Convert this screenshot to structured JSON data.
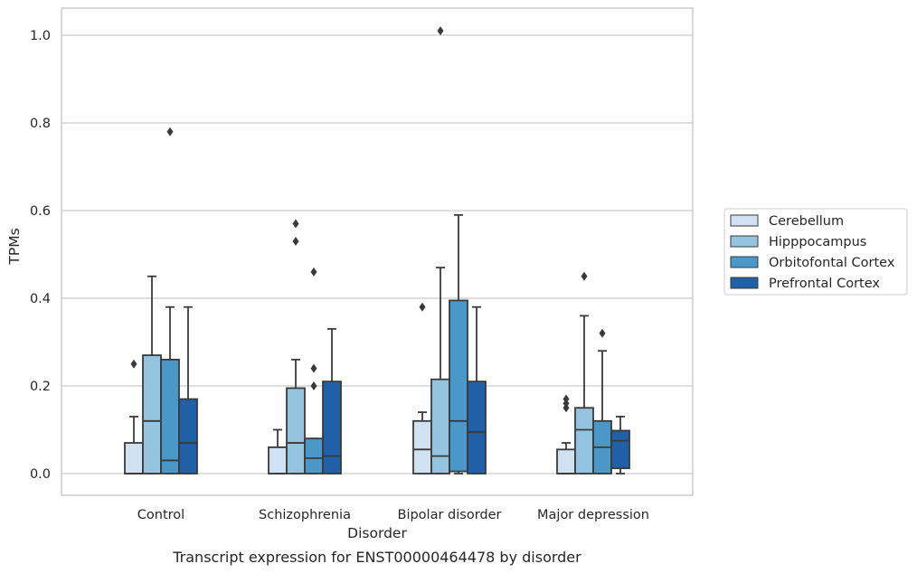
{
  "chart_data": {
    "type": "box",
    "caption": "Transcript expression for ENST00000464478 by disorder",
    "xlabel": "Disorder",
    "ylabel": "TPMs",
    "ylim": [
      -0.05,
      1.06
    ],
    "yticks": [
      "0.0",
      "0.2",
      "0.4",
      "0.6",
      "0.8",
      "1.0"
    ],
    "ytick_values": [
      0,
      0.2,
      0.4,
      0.6,
      0.8,
      1.0
    ],
    "grid": true,
    "legend_position": "right",
    "categories": [
      "Control",
      "Schizophrenia",
      "Bipolar disorder",
      "Major depression"
    ],
    "series": [
      {
        "name": "Cerebellum",
        "color": "#d0e1f2",
        "boxes": [
          {
            "q1": 0,
            "median": 0,
            "q3": 0.07,
            "whisker_low": 0,
            "whisker_high": 0.13,
            "outliers": [
              0.25
            ]
          },
          {
            "q1": 0,
            "median": 0,
            "q3": 0.06,
            "whisker_low": 0,
            "whisker_high": 0.1,
            "outliers": []
          },
          {
            "q1": 0,
            "median": 0.055,
            "q3": 0.12,
            "whisker_low": 0,
            "whisker_high": 0.14,
            "outliers": [
              0.38
            ]
          },
          {
            "q1": 0,
            "median": 0,
            "q3": 0.055,
            "whisker_low": 0,
            "whisker_high": 0.07,
            "outliers": [
              0.15,
              0.16,
              0.17
            ]
          }
        ]
      },
      {
        "name": "Hipppocampus",
        "color": "#94c4df",
        "boxes": [
          {
            "q1": 0,
            "median": 0.12,
            "q3": 0.27,
            "whisker_low": 0,
            "whisker_high": 0.45,
            "outliers": []
          },
          {
            "q1": 0,
            "median": 0.07,
            "q3": 0.195,
            "whisker_low": 0,
            "whisker_high": 0.26,
            "outliers": [
              0.53,
              0.57
            ]
          },
          {
            "q1": 0,
            "median": 0.04,
            "q3": 0.215,
            "whisker_low": 0,
            "whisker_high": 0.47,
            "outliers": [
              1.01
            ]
          },
          {
            "q1": 0,
            "median": 0.1,
            "q3": 0.15,
            "whisker_low": 0,
            "whisker_high": 0.36,
            "outliers": [
              0.45
            ]
          }
        ]
      },
      {
        "name": "Orbitofontal Cortex",
        "color": "#4a98c9",
        "boxes": [
          {
            "q1": 0,
            "median": 0.03,
            "q3": 0.26,
            "whisker_low": 0,
            "whisker_high": 0.38,
            "outliers": [
              0.78
            ]
          },
          {
            "q1": 0,
            "median": 0.035,
            "q3": 0.08,
            "whisker_low": 0,
            "whisker_high": 0.08,
            "outliers": [
              0.2,
              0.24,
              0.46
            ]
          },
          {
            "q1": 0.005,
            "median": 0.12,
            "q3": 0.395,
            "whisker_low": 0,
            "whisker_high": 0.59,
            "outliers": []
          },
          {
            "q1": 0,
            "median": 0.06,
            "q3": 0.12,
            "whisker_low": 0,
            "whisker_high": 0.28,
            "outliers": [
              0.32
            ]
          }
        ]
      },
      {
        "name": "Prefrontal Cortex",
        "color": "#2060a8",
        "boxes": [
          {
            "q1": 0,
            "median": 0.07,
            "q3": 0.17,
            "whisker_low": 0,
            "whisker_high": 0.38,
            "outliers": []
          },
          {
            "q1": 0,
            "median": 0.04,
            "q3": 0.21,
            "whisker_low": 0,
            "whisker_high": 0.33,
            "outliers": []
          },
          {
            "q1": 0,
            "median": 0.095,
            "q3": 0.21,
            "whisker_low": 0,
            "whisker_high": 0.38,
            "outliers": []
          },
          {
            "q1": 0.012,
            "median": 0.075,
            "q3": 0.098,
            "whisker_low": 0,
            "whisker_high": 0.13,
            "outliers": []
          }
        ]
      }
    ]
  }
}
